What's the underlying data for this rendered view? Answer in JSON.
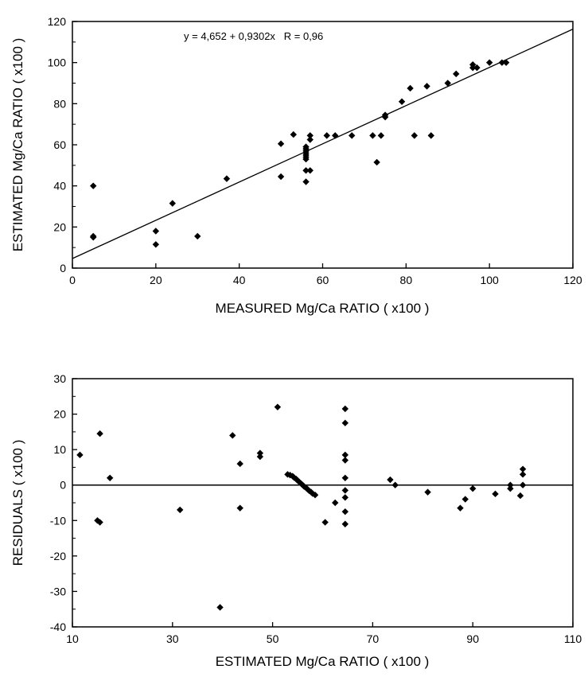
{
  "chart_data": [
    {
      "type": "scatter",
      "xlabel": "MEASURED Mg/Ca RATIO ( x100 )",
      "ylabel": "ESTIMATED Mg/Ca RATIO ( x100 )",
      "xlim": [
        0,
        120
      ],
      "ylim": [
        0,
        120
      ],
      "xticks": [
        0,
        20,
        40,
        60,
        80,
        100,
        120
      ],
      "yticks": [
        0,
        20,
        40,
        60,
        80,
        100,
        120
      ],
      "grid": false,
      "annotation": "y = 4,652 + 0,9302x   R = 0,96",
      "regression_line": {
        "intercept": 4.652,
        "slope": 0.9302
      },
      "points": [
        [
          5,
          40
        ],
        [
          5,
          15.5
        ],
        [
          5,
          15
        ],
        [
          20,
          18
        ],
        [
          20,
          11.5
        ],
        [
          24,
          31.5
        ],
        [
          30,
          15.5
        ],
        [
          37,
          43.5
        ],
        [
          50,
          44.5
        ],
        [
          50,
          60.5
        ],
        [
          53,
          65
        ],
        [
          56,
          42
        ],
        [
          56,
          47.5
        ],
        [
          56,
          53
        ],
        [
          56,
          54
        ],
        [
          56,
          55
        ],
        [
          56,
          56
        ],
        [
          56,
          57
        ],
        [
          56,
          58
        ],
        [
          56,
          59
        ],
        [
          57,
          47.5
        ],
        [
          57,
          62.5
        ],
        [
          57,
          64.5
        ],
        [
          61,
          64.5
        ],
        [
          63,
          64.5
        ],
        [
          67,
          64.5
        ],
        [
          72,
          64.5
        ],
        [
          73,
          51.5
        ],
        [
          74,
          64.5
        ],
        [
          75,
          73.5
        ],
        [
          75,
          74.5
        ],
        [
          79,
          81
        ],
        [
          81,
          87.5
        ],
        [
          82,
          64.5
        ],
        [
          85,
          88.5
        ],
        [
          86,
          64.5
        ],
        [
          90,
          90
        ],
        [
          92,
          94.5
        ],
        [
          96,
          97.5
        ],
        [
          96,
          99
        ],
        [
          97,
          97.5
        ],
        [
          100,
          100
        ],
        [
          103,
          100
        ],
        [
          104,
          100
        ]
      ]
    },
    {
      "type": "scatter",
      "xlabel": "ESTIMATED Mg/Ca RATIO ( x100 )",
      "ylabel": "RESIDUALS ( x100 )",
      "xlim": [
        10,
        110
      ],
      "ylim": [
        -40,
        30
      ],
      "xticks": [
        10,
        30,
        50,
        70,
        90,
        110
      ],
      "yticks": [
        -40,
        -30,
        -20,
        -10,
        0,
        10,
        20,
        30
      ],
      "grid": false,
      "zero_line": true,
      "points": [
        [
          11.5,
          8.5
        ],
        [
          15,
          -10
        ],
        [
          15.5,
          14.5
        ],
        [
          15.5,
          -10.5
        ],
        [
          17.5,
          2
        ],
        [
          31.5,
          -7
        ],
        [
          39.5,
          -34.5
        ],
        [
          42,
          14
        ],
        [
          43.5,
          6
        ],
        [
          43.5,
          -6.5
        ],
        [
          47.5,
          9
        ],
        [
          47.5,
          8
        ],
        [
          51,
          22
        ],
        [
          53,
          3
        ],
        [
          53.5,
          2.8
        ],
        [
          54,
          2.5
        ],
        [
          54.3,
          2.1
        ],
        [
          54.7,
          1.7
        ],
        [
          55,
          1.3
        ],
        [
          55.3,
          0.9
        ],
        [
          55.7,
          0.4
        ],
        [
          56,
          0
        ],
        [
          56.3,
          -0.4
        ],
        [
          56.7,
          -0.8
        ],
        [
          57,
          -1.2
        ],
        [
          57.3,
          -1.6
        ],
        [
          57.7,
          -2
        ],
        [
          58,
          -2.4
        ],
        [
          58.5,
          -2.8
        ],
        [
          60.5,
          -10.5
        ],
        [
          62.5,
          -5
        ],
        [
          64.5,
          21.5
        ],
        [
          64.5,
          17.5
        ],
        [
          64.5,
          8.5
        ],
        [
          64.5,
          7
        ],
        [
          64.5,
          2
        ],
        [
          64.5,
          -1.5
        ],
        [
          64.5,
          -3.5
        ],
        [
          64.5,
          -7.5
        ],
        [
          64.5,
          -11
        ],
        [
          73.5,
          1.5
        ],
        [
          74.5,
          0
        ],
        [
          81,
          -2
        ],
        [
          87.5,
          -6.5
        ],
        [
          88.5,
          -4
        ],
        [
          90,
          -1
        ],
        [
          94.5,
          -2.5
        ],
        [
          97.5,
          0
        ],
        [
          97.5,
          -1
        ],
        [
          99.5,
          -3
        ],
        [
          100,
          4.5
        ],
        [
          100,
          3
        ],
        [
          100,
          0
        ]
      ]
    }
  ]
}
